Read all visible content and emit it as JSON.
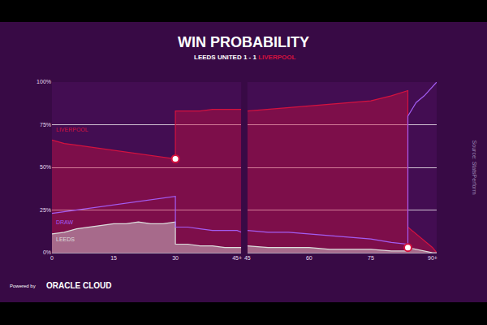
{
  "chart_data": [
    {
      "type": "line",
      "title": "WIN PROBABILITY",
      "subtitle": "LEEDS UNITED 1 - 1 LIVERPOOL",
      "source": "Source: StatsPerform",
      "footer": [
        "Powered by",
        "ORACLE CLOUD"
      ],
      "x": [
        0,
        3,
        6,
        9,
        12,
        15,
        18,
        21,
        24,
        27,
        30,
        30,
        33,
        36,
        39,
        42,
        45,
        46
      ],
      "series": [
        {
          "name": "LIVERPOOL",
          "type": "area",
          "color": "#d4123f",
          "values": [
            66,
            64,
            63,
            62,
            61,
            60,
            59,
            58,
            57,
            56,
            55,
            83,
            83,
            83,
            84,
            84,
            84,
            84
          ]
        },
        {
          "name": "LEEDS",
          "type": "area",
          "color": "#dcdcdc",
          "values": [
            11,
            12,
            14,
            15,
            16,
            17,
            17,
            18,
            17,
            17,
            18,
            5,
            5,
            4,
            4,
            3,
            3,
            3
          ]
        },
        {
          "name": "DRAW",
          "type": "line",
          "color": "#a35cf2",
          "values": [
            23,
            24,
            25,
            26,
            27,
            28,
            29,
            30,
            31,
            32,
            33,
            15,
            15,
            14,
            13,
            13,
            13,
            12
          ]
        }
      ],
      "annotations": [
        {
          "text": "LIVERPOOL",
          "x": 0.5,
          "y": 72
        },
        {
          "text": "DRAW",
          "x": 0.5,
          "y": 18
        },
        {
          "text": "LEEDS",
          "x": 0.5,
          "y": 8
        }
      ],
      "goals": [
        {
          "x": 30,
          "y": 55
        }
      ],
      "xlim": [
        0,
        46
      ],
      "xticks": [
        0,
        15,
        30,
        {
          "value": 45,
          "label": "45+"
        }
      ],
      "ylim": [
        0,
        100
      ],
      "yticks": [
        {
          "value": 0,
          "label": "0%"
        },
        {
          "value": 25,
          "label": "25%"
        },
        {
          "value": 50,
          "label": "50%"
        },
        {
          "value": 75,
          "label": "75%"
        },
        {
          "value": 100,
          "label": "100%"
        }
      ],
      "grid": true
    },
    {
      "type": "line",
      "x": [
        45,
        50,
        55,
        60,
        65,
        70,
        75,
        80,
        84,
        84,
        86,
        88,
        90,
        91
      ],
      "series": [
        {
          "name": "LIVERPOOL",
          "type": "area",
          "color": "#d4123f",
          "values": [
            83,
            84,
            85,
            86,
            87,
            88,
            89,
            92,
            95,
            15,
            11,
            7,
            3,
            0
          ]
        },
        {
          "name": "LEEDS",
          "type": "area",
          "color": "#dcdcdc",
          "values": [
            4,
            3,
            3,
            3,
            2,
            2,
            2,
            1,
            1,
            3,
            2,
            1,
            0,
            0
          ]
        },
        {
          "name": "DRAW",
          "type": "line",
          "color": "#a35cf2",
          "values": [
            13,
            12,
            12,
            11,
            10,
            9,
            8,
            6,
            5,
            80,
            88,
            92,
            97,
            100
          ]
        }
      ],
      "goals": [
        {
          "x": 84,
          "y": 3
        }
      ],
      "xlim": [
        45,
        91
      ],
      "xticks": [
        45,
        60,
        75,
        {
          "value": 90,
          "label": "90+"
        }
      ],
      "ylim": [
        0,
        100
      ],
      "yticks": [
        0,
        25,
        50,
        75,
        100
      ],
      "tick_labels": "x",
      "grid": true
    }
  ]
}
